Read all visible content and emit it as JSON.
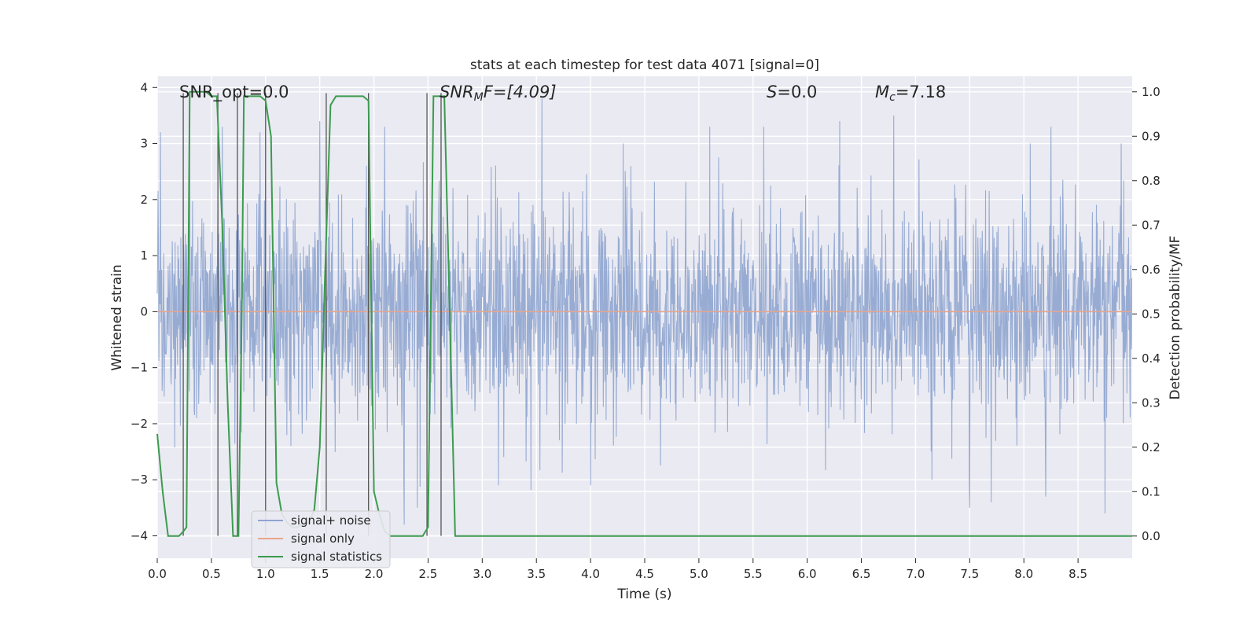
{
  "chart_data": {
    "type": "line",
    "title": "stats at each timestep for test data 4071 [signal=0]",
    "xlabel": "Time (s)",
    "ylabel_left": "Whitened strain",
    "ylabel_right": "Detection probability/MF",
    "xlim": [
      0.0,
      9.0
    ],
    "ylim_left": [
      -4.4,
      4.2
    ],
    "ylim_right": [
      -0.05,
      1.035
    ],
    "x_ticks": [
      "0.0",
      "0.5",
      "1.0",
      "1.5",
      "2.0",
      "2.5",
      "3.0",
      "3.5",
      "4.0",
      "4.5",
      "5.0",
      "5.5",
      "6.0",
      "6.5",
      "7.0",
      "7.5",
      "8.0",
      "8.5"
    ],
    "x_tick_values": [
      0.0,
      0.5,
      1.0,
      1.5,
      2.0,
      2.5,
      3.0,
      3.5,
      4.0,
      4.5,
      5.0,
      5.5,
      6.0,
      6.5,
      7.0,
      7.5,
      8.0,
      8.5
    ],
    "y_left_ticks": [
      "4",
      "3",
      "2",
      "1",
      "0",
      "−1",
      "−2",
      "−3",
      "−4"
    ],
    "y_left_tick_values": [
      4,
      3,
      2,
      1,
      0,
      -1,
      -2,
      -3,
      -4
    ],
    "y_right_ticks": [
      "1.0",
      "0.9",
      "0.8",
      "0.7",
      "0.6",
      "0.5",
      "0.4",
      "0.3",
      "0.2",
      "0.1",
      "0.0"
    ],
    "y_right_tick_values": [
      1.0,
      0.9,
      0.8,
      0.7,
      0.6,
      0.5,
      0.4,
      0.3,
      0.2,
      0.1,
      0.0
    ],
    "grid": true,
    "legend": {
      "placement": "lower-left",
      "entries": [
        {
          "label": "signal+ noise",
          "color": "#8fa5cf"
        },
        {
          "label": "signal only",
          "color": "#e8a58b"
        },
        {
          "label": "signal statistics",
          "color": "#3c9b4e"
        }
      ]
    },
    "annotations": {
      "snr_opt": "SNR_opt=0.0",
      "snr_mf_sym": "SNR",
      "snr_mf_sub": "M",
      "snr_mf_tail": "F=[4.09]",
      "s_sym": "S",
      "s_tail": "=0.0",
      "mc_sym": "M",
      "mc_sub": "c",
      "mc_tail": "=7.18"
    },
    "series": [
      {
        "name": "signal+ noise",
        "axis": "left",
        "color": "#8fa5cf",
        "description": "whitened Gaussian noise, std ~1, max peaks ~3.8, min ~-4",
        "peaks": [
          [
            0.03,
            3.2
          ],
          [
            0.3,
            3.1
          ],
          [
            0.6,
            3.3
          ],
          [
            0.95,
            3.2
          ],
          [
            1.5,
            3.4
          ],
          [
            2.1,
            3.3
          ],
          [
            3.55,
            3.8
          ],
          [
            4.3,
            3.0
          ],
          [
            5.1,
            3.3
          ],
          [
            5.6,
            3.3
          ],
          [
            6.3,
            3.4
          ],
          [
            6.8,
            3.5
          ],
          [
            7.15,
            3.6
          ],
          [
            8.25,
            3.3
          ],
          [
            8.9,
            3.0
          ]
        ],
        "troughs": [
          [
            2.28,
            -3.8
          ],
          [
            2.4,
            -3.5
          ],
          [
            3.15,
            -3.1
          ],
          [
            4.0,
            -3.1
          ],
          [
            7.15,
            -3.0
          ],
          [
            7.5,
            -3.5
          ],
          [
            7.7,
            -3.4
          ],
          [
            8.2,
            -3.3
          ],
          [
            8.75,
            -3.6
          ]
        ]
      },
      {
        "name": "signal only",
        "axis": "left",
        "color": "#e8a58b",
        "x": [
          0.0,
          9.0
        ],
        "values": [
          0.0,
          0.0
        ]
      },
      {
        "name": "signal statistics",
        "axis": "right",
        "color": "#3c9b4e",
        "x": [
          0.0,
          0.05,
          0.1,
          0.15,
          0.2,
          0.24,
          0.27,
          0.3,
          0.35,
          0.4,
          0.45,
          0.5,
          0.55,
          0.6,
          0.65,
          0.7,
          0.75,
          0.78,
          0.8,
          0.85,
          0.9,
          0.95,
          1.0,
          1.05,
          1.1,
          1.15,
          1.2,
          1.25,
          1.3,
          1.35,
          1.4,
          1.45,
          1.5,
          1.55,
          1.6,
          1.65,
          1.7,
          1.75,
          1.8,
          1.85,
          1.9,
          1.95,
          2.0,
          2.05,
          2.1,
          2.15,
          2.2,
          2.25,
          2.3,
          2.35,
          2.4,
          2.45,
          2.5,
          2.55,
          2.6,
          2.65,
          2.7,
          2.75,
          2.8,
          3.0,
          4.0,
          5.0,
          6.0,
          7.0,
          8.0,
          9.0
        ],
        "values": [
          0.23,
          0.1,
          0.0,
          0.0,
          0.0,
          0.01,
          0.02,
          1.0,
          1.0,
          1.0,
          1.0,
          0.99,
          0.99,
          0.7,
          0.3,
          0.0,
          0.0,
          0.5,
          0.99,
          0.99,
          0.99,
          0.99,
          0.98,
          0.9,
          0.12,
          0.05,
          0.03,
          0.02,
          0.02,
          0.03,
          0.03,
          0.06,
          0.2,
          0.6,
          0.97,
          0.99,
          0.99,
          0.99,
          0.99,
          0.99,
          0.99,
          0.98,
          0.1,
          0.05,
          0.01,
          0.0,
          0.0,
          0.0,
          0.0,
          0.0,
          0.0,
          0.0,
          0.02,
          0.99,
          0.99,
          0.99,
          0.5,
          0.0,
          0.0,
          0.0,
          0.0,
          0.0,
          0.0,
          0.0,
          0.0,
          0.0
        ]
      }
    ],
    "vertical_markers": [
      0.24,
      0.56,
      0.74,
      1.0,
      1.56,
      1.95,
      2.49,
      2.62
    ]
  }
}
